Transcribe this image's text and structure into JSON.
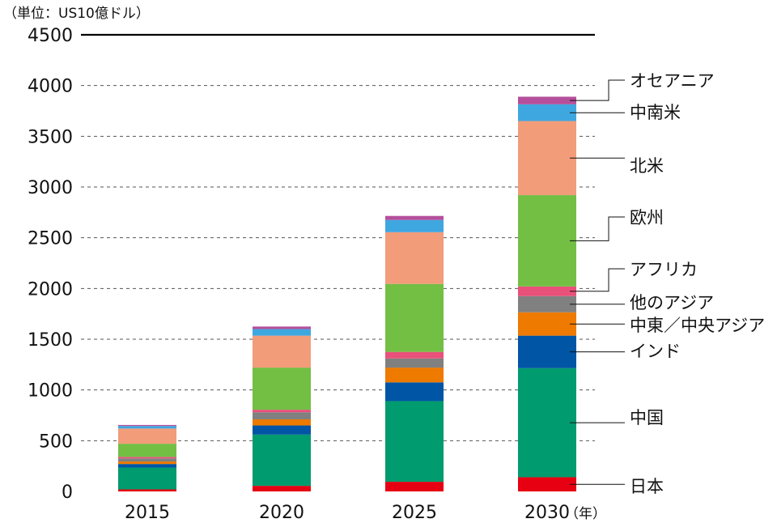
{
  "chart_data": {
    "type": "bar",
    "stacked": true,
    "unit_label": "（単位：US10億ドル）",
    "x_unit_label": "（年）",
    "categories": [
      "2015",
      "2020",
      "2025",
      "2030"
    ],
    "ylim": [
      0,
      4500
    ],
    "yticks": [
      "0",
      "500",
      "1000",
      "1500",
      "2000",
      "2500",
      "3000",
      "3500",
      "4000",
      "4500"
    ],
    "grid": true,
    "legend_position": "right",
    "series": [
      {
        "name": "日本",
        "color": "#e60012",
        "values": [
          20,
          55,
          95,
          140
        ]
      },
      {
        "name": "中国",
        "color": "#009b6e",
        "values": [
          215,
          505,
          795,
          1075
        ]
      },
      {
        "name": "インド",
        "color": "#0055a5",
        "values": [
          35,
          90,
          185,
          320
        ]
      },
      {
        "name": "中東／中央アジア",
        "color": "#ee7a00",
        "values": [
          25,
          60,
          145,
          230
        ]
      },
      {
        "name": "他のアジア",
        "color": "#808080",
        "values": [
          30,
          70,
          90,
          160
        ]
      },
      {
        "name": "アフリカ",
        "color": "#e8517a",
        "values": [
          15,
          25,
          65,
          95
        ]
      },
      {
        "name": "欧州",
        "color": "#72bf44",
        "values": [
          130,
          415,
          670,
          900
        ]
      },
      {
        "name": "北米",
        "color": "#f29c7a",
        "values": [
          150,
          315,
          510,
          730
        ]
      },
      {
        "name": "中南米",
        "color": "#3fa7e0",
        "values": [
          25,
          65,
          120,
          165
        ]
      },
      {
        "name": "オセアニア",
        "color": "#b54f9c",
        "values": [
          10,
          25,
          40,
          75
        ]
      }
    ]
  }
}
